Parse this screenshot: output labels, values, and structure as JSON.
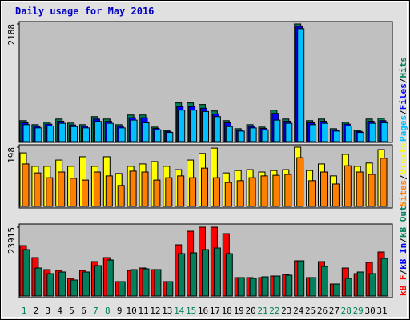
{
  "chart_data": [
    {
      "type": "bar",
      "title": "Daily usage for May 2016",
      "ylim": [
        0,
        2188
      ],
      "yticks": [
        2188
      ],
      "separator": "/",
      "legend_reverse": true,
      "series": [
        {
          "name": "Hits",
          "color": "#00805c",
          "values": [
            390,
            315,
            360,
            420,
            345,
            315,
            465,
            420,
            315,
            495,
            495,
            270,
            210,
            720,
            720,
            690,
            570,
            390,
            240,
            315,
            270,
            585,
            420,
            2188,
            390,
            420,
            240,
            360,
            210,
            420,
            435
          ]
        },
        {
          "name": "Files",
          "color": "#0000ff",
          "values": [
            350,
            285,
            325,
            380,
            310,
            285,
            420,
            380,
            285,
            445,
            445,
            245,
            190,
            650,
            650,
            620,
            515,
            350,
            215,
            285,
            245,
            525,
            380,
            2143,
            350,
            380,
            215,
            325,
            190,
            380,
            390
          ]
        },
        {
          "name": "Pages",
          "color": "#00c0ff",
          "values": [
            315,
            255,
            290,
            340,
            280,
            255,
            375,
            340,
            255,
            400,
            350,
            220,
            170,
            585,
            585,
            560,
            465,
            280,
            195,
            255,
            220,
            400,
            340,
            2100,
            315,
            340,
            195,
            290,
            170,
            340,
            350
          ]
        }
      ]
    },
    {
      "type": "bar",
      "ylim": [
        0,
        198
      ],
      "yticks": [
        198
      ],
      "separator": "/",
      "legend_reverse": true,
      "series": [
        {
          "name": "Visits",
          "color": "#ffff00",
          "values": [
            179,
            134,
            134,
            155,
            134,
            166,
            134,
            166,
            110,
            134,
            142,
            150,
            134,
            123,
            155,
            177,
            195,
            112,
            120,
            123,
            115,
            120,
            123,
            198,
            120,
            142,
            102,
            174,
            134,
            145,
            190
          ]
        },
        {
          "name": "Sites",
          "color": "#ff8000",
          "values": [
            142,
            112,
            96,
            115,
            94,
            88,
            115,
            102,
            70,
            118,
            115,
            88,
            96,
            102,
            96,
            128,
            96,
            80,
            86,
            96,
            102,
            104,
            107,
            163,
            86,
            115,
            75,
            136,
            115,
            107,
            161
          ]
        }
      ]
    },
    {
      "type": "bar",
      "ylim": [
        0,
        23915
      ],
      "yticks": [
        23915
      ],
      "separator": "/",
      "legend_reverse": false,
      "categories": [
        "1",
        "2",
        "3",
        "4",
        "5",
        "6",
        "7",
        "8",
        "9",
        "10",
        "11",
        "12",
        "13",
        "14",
        "15",
        "16",
        "17",
        "18",
        "19",
        "20",
        "21",
        "22",
        "23",
        "24",
        "25",
        "26",
        "27",
        "28",
        "29",
        "30",
        "31"
      ],
      "category_colors": [
        "#00805c",
        "#000000",
        "#000000",
        "#000000",
        "#000000",
        "#000000",
        "#00805c",
        "#00805c",
        "#000000",
        "#000000",
        "#000000",
        "#000000",
        "#000000",
        "#00805c",
        "#00805c",
        "#000000",
        "#000000",
        "#000000",
        "#000000",
        "#000000",
        "#00805c",
        "#00805c",
        "#000000",
        "#000000",
        "#000000",
        "#000000",
        "#000000",
        "#00805c",
        "#00805c",
        "#000000",
        "#000000"
      ],
      "series": [
        {
          "name": "kB F",
          "color": "#ff0000",
          "values": [
            17514,
            13344,
            9174,
            8896,
            6116,
            8896,
            11954,
            13344,
            5004,
            8896,
            9730,
            9174,
            5004,
            17792,
            22518,
            23915,
            23915,
            21684,
            6394,
            6394,
            6394,
            6950,
            7506,
            12232,
            6394,
            11954,
            4170,
            9730,
            7784,
            11676,
            15290
          ]
        },
        {
          "name": "kB In",
          "color": "#0000ff",
          "values": [
            0,
            0,
            0,
            0,
            0,
            0,
            0,
            0,
            0,
            0,
            0,
            0,
            0,
            0,
            0,
            0,
            0,
            0,
            0,
            0,
            0,
            0,
            0,
            0,
            0,
            0,
            0,
            0,
            0,
            0,
            0
          ]
        },
        {
          "name": "kB Out",
          "color": "#00805c",
          "values": [
            16124,
            9730,
            7784,
            8340,
            5560,
            8340,
            10564,
            12510,
            5004,
            9174,
            9452,
            9174,
            5004,
            14734,
            15012,
            16124,
            16680,
            14734,
            6394,
            6116,
            6672,
            6950,
            7228,
            12232,
            6394,
            10286,
            4170,
            6116,
            8340,
            7784,
            13066
          ]
        }
      ]
    }
  ]
}
